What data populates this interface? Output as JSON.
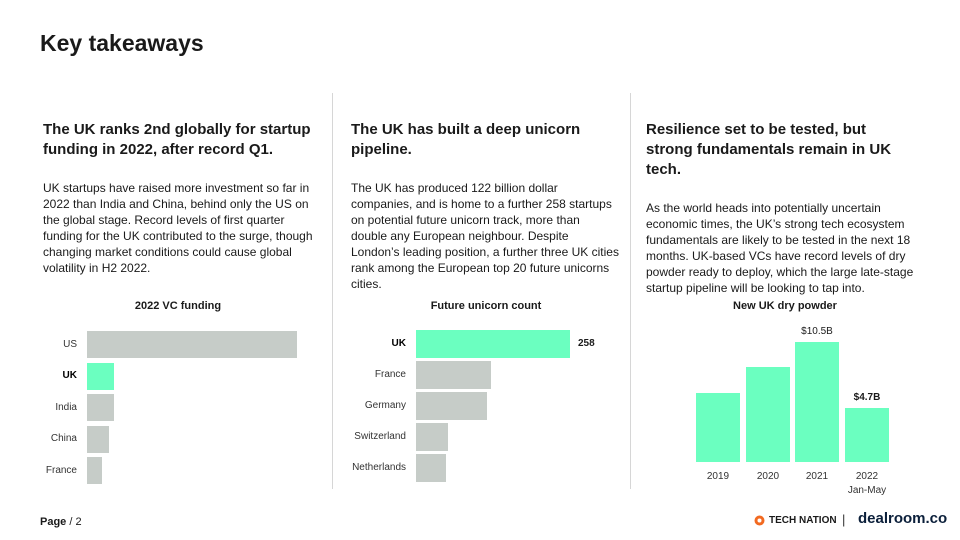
{
  "page_title": "Key takeaways",
  "columns": [
    {
      "heading": "The UK ranks 2nd globally for startup funding in 2022, after record Q1.",
      "body": "UK startups have raised more investment so far in 2022 than India and China, behind only the US on the global stage. Record levels of first quarter funding for the UK contributed to the surge, though changing market conditions could cause global volatility in H2 2022."
    },
    {
      "heading": "The UK has built a deep unicorn pipeline.",
      "body": "The UK has produced 122 billion dollar companies, and is home to a further 258 startups on potential future unicorn track, more than double any European neighbour. Despite London’s leading position, a further three UK cities rank among the European top 20 future unicorns cities."
    },
    {
      "heading": "Resilience set to be tested, but strong fundamentals remain in UK tech.",
      "body": "As the world heads into potentially uncertain economic times, the UK’s strong tech ecosystem fundamentals are likely to be tested in the next 18 months. UK-based VCs have record levels of dry powder ready to deploy, which the large late-stage startup pipeline will be looking to tap into."
    }
  ],
  "colors": {
    "highlight": "#6bffc0",
    "neutral": "#c6ccc8"
  },
  "chart_data": [
    {
      "type": "bar",
      "orientation": "horizontal",
      "title": "2022 VC funding",
      "categories": [
        "US",
        "UK",
        "India",
        "China",
        "France"
      ],
      "values": [
        100,
        13,
        13,
        10.5,
        7
      ],
      "highlight": "UK",
      "value_labels": [
        "",
        "",
        "",
        "",
        ""
      ],
      "xlim": [
        0,
        100
      ]
    },
    {
      "type": "bar",
      "orientation": "horizontal",
      "title": "Future unicorn count",
      "categories": [
        "UK",
        "France",
        "Germany",
        "Switzerland",
        "Netherlands"
      ],
      "values": [
        258,
        125,
        119,
        53,
        51
      ],
      "highlight": "UK",
      "value_labels": [
        "258",
        "",
        "",
        "",
        ""
      ],
      "xlim": [
        0,
        258
      ]
    },
    {
      "type": "bar",
      "orientation": "vertical",
      "title": "New UK dry powder",
      "categories": [
        "2019",
        "2020",
        "2021",
        "2022"
      ],
      "category_sublabels": [
        "",
        "",
        "",
        "Jan-May"
      ],
      "values": [
        6.0,
        8.3,
        10.5,
        4.7
      ],
      "value_labels": [
        "",
        "",
        "$10.5B",
        "$4.7B"
      ],
      "ylim": [
        0,
        10.5
      ]
    }
  ],
  "footer": {
    "page_label": "Page",
    "page_number": "/ 2",
    "partner_logo": "TECH NATION",
    "separator": "|",
    "brand_logo": "dealroom.co"
  }
}
